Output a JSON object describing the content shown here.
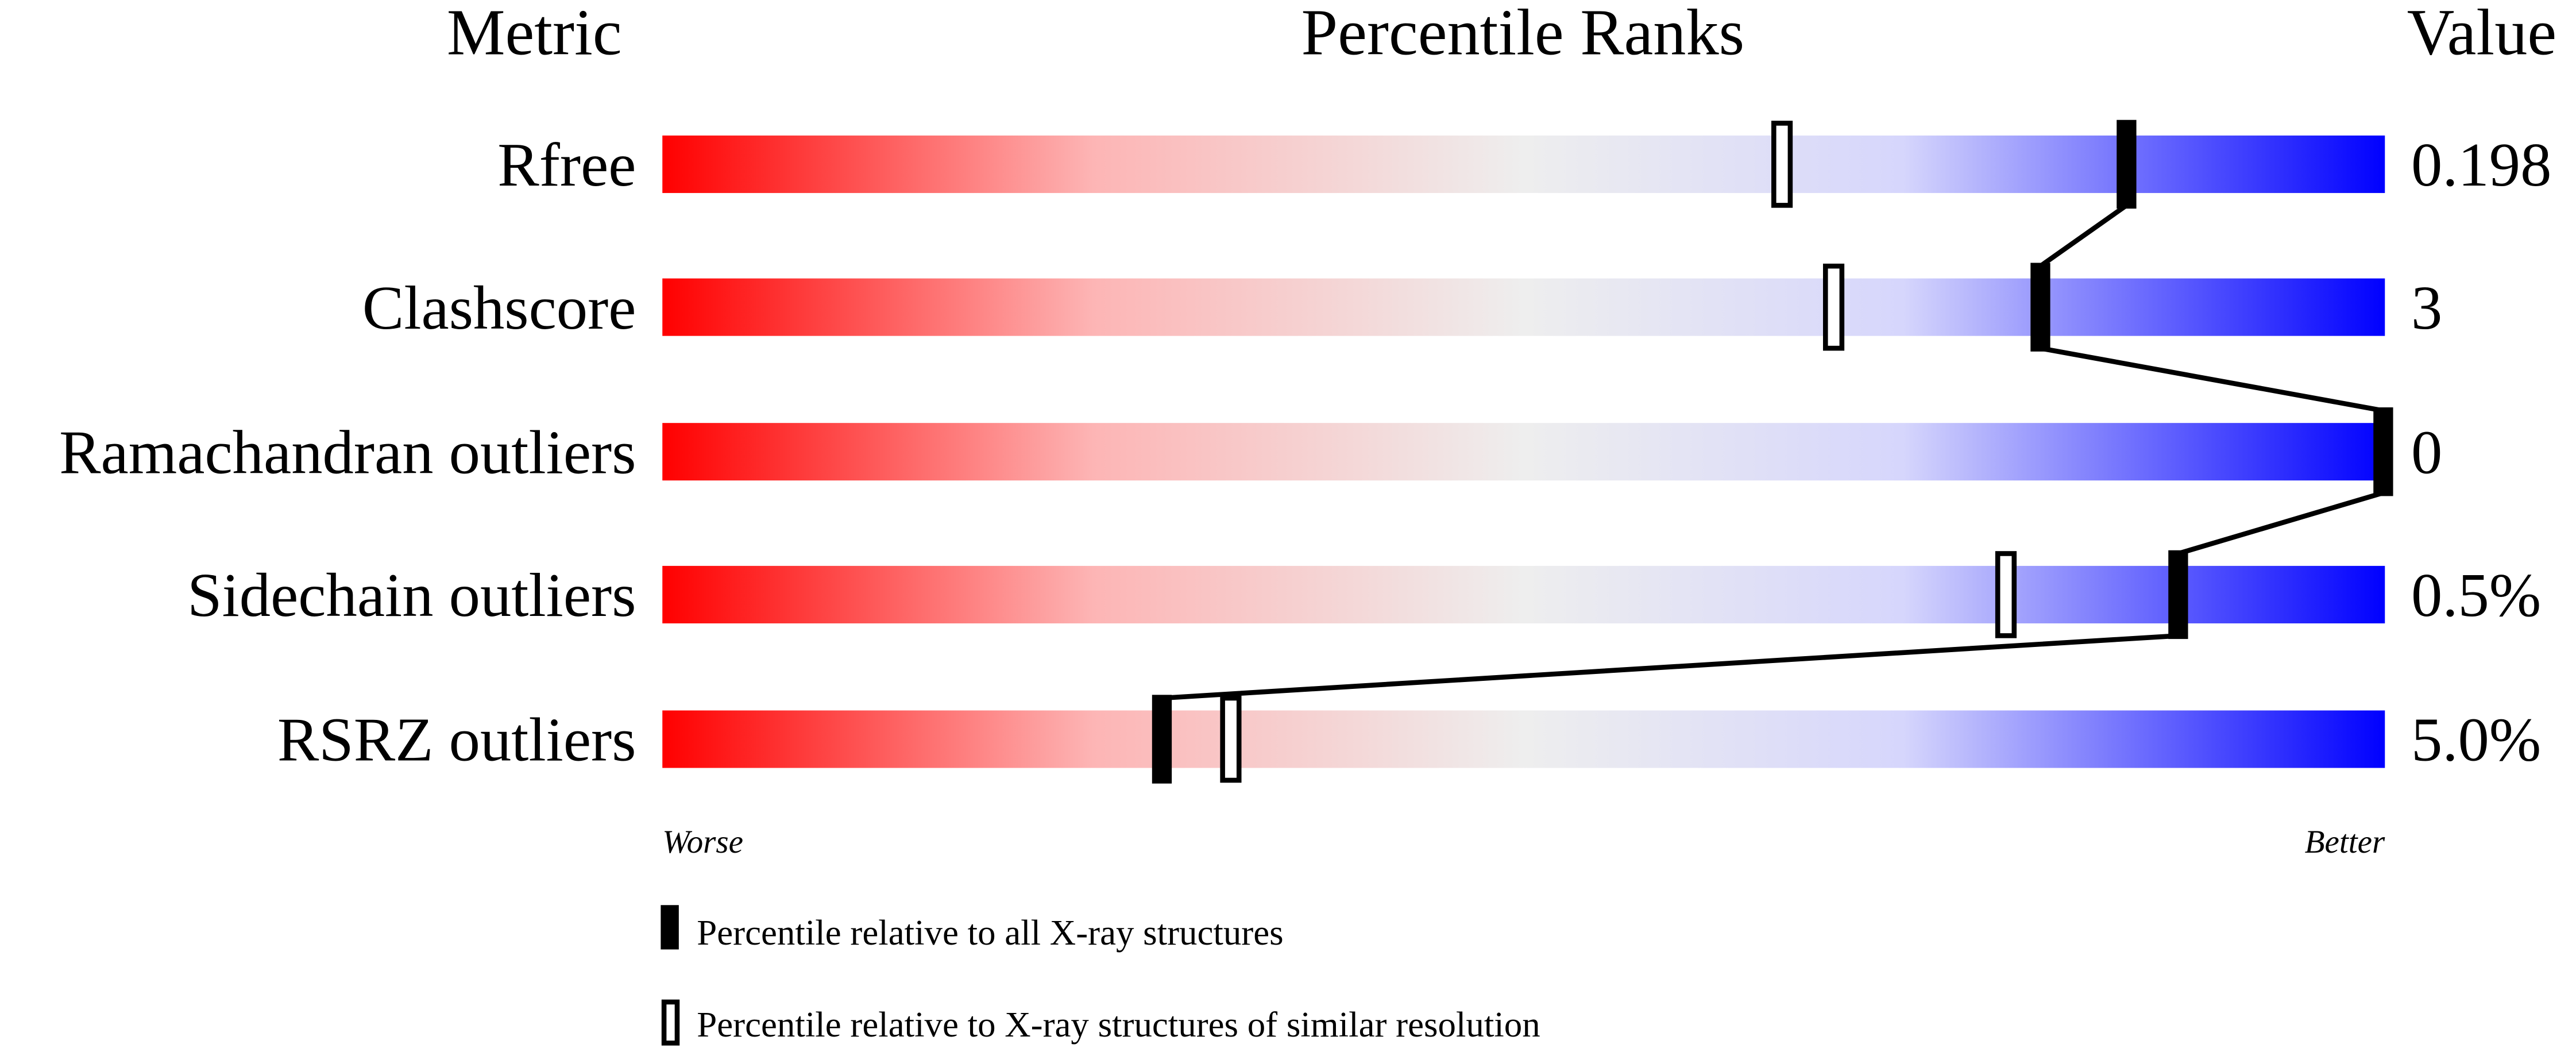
{
  "chart_data": {
    "type": "bar",
    "headers": {
      "metric": "Metric",
      "ranks": "Percentile Ranks",
      "value": "Value"
    },
    "categories": [
      "Rfree",
      "Clashscore",
      "Ramachandran outliers",
      "Sidechain outliers",
      "RSRZ outliers"
    ],
    "values_text": [
      "0.198",
      "3",
      "0",
      "0.5%",
      "5.0%"
    ],
    "series": [
      {
        "name": "Percentile relative to all X-ray structures",
        "marker": "filled",
        "values": [
          85,
          80,
          100,
          88,
          29
        ]
      },
      {
        "name": "Percentile relative to X-ray structures of similar resolution",
        "marker": "open",
        "values": [
          65,
          68,
          null,
          78,
          33
        ]
      }
    ],
    "xlim": [
      0,
      100
    ],
    "axis_labels": {
      "left": "Worse",
      "right": "Better"
    },
    "gradient_colors": [
      "#ff0000",
      "#eeeeee",
      "#d6d6ff",
      "#0000ff"
    ],
    "legend_placement": "bottom"
  }
}
